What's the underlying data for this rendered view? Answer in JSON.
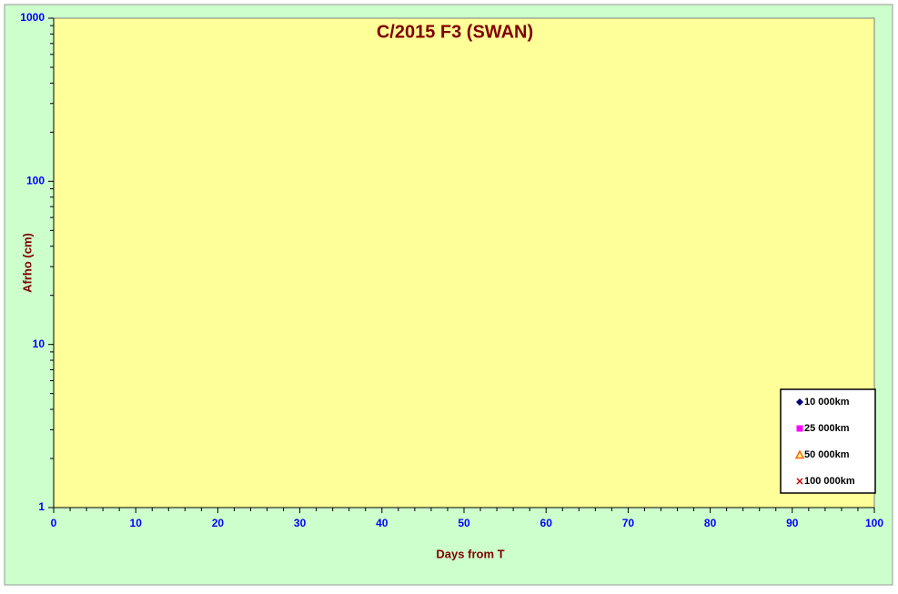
{
  "chart_data": {
    "type": "scatter",
    "title": "C/2015 F3 (SWAN)",
    "x_label": "Days from  T",
    "y_label": "Afrho (cm)",
    "x": [],
    "series": [
      {
        "name": "10 000km",
        "color": "#000080",
        "marker": "diamond",
        "values": []
      },
      {
        "name": "25 000km",
        "color": "#ff00ff",
        "marker": "square",
        "values": []
      },
      {
        "name": "50 000km",
        "color": "#ff6600",
        "marker": "triangle",
        "values": []
      },
      {
        "name": "100 000km",
        "color": "#cc0000",
        "marker": "cross",
        "values": []
      }
    ],
    "xlim": [
      0,
      100
    ],
    "xticks": [
      0,
      10,
      20,
      30,
      40,
      50,
      60,
      70,
      80,
      90,
      100
    ],
    "xminorticks": [
      2,
      4,
      6,
      8,
      12,
      14,
      16,
      18,
      22,
      24,
      26,
      28,
      32,
      34,
      36,
      38,
      42,
      44,
      46,
      48,
      52,
      54,
      56,
      58,
      62,
      64,
      66,
      68,
      72,
      74,
      76,
      78,
      82,
      84,
      86,
      88,
      92,
      94,
      96,
      98
    ],
    "ylim": [
      1,
      1000
    ],
    "yticks": [
      1,
      10,
      100,
      1000
    ],
    "yminorticks": [
      2,
      3,
      4,
      5,
      6,
      7,
      8,
      9,
      20,
      30,
      40,
      50,
      60,
      70,
      80,
      90,
      200,
      300,
      400,
      500,
      600,
      700,
      800,
      900
    ],
    "ylog": true,
    "legend": "lower right"
  }
}
